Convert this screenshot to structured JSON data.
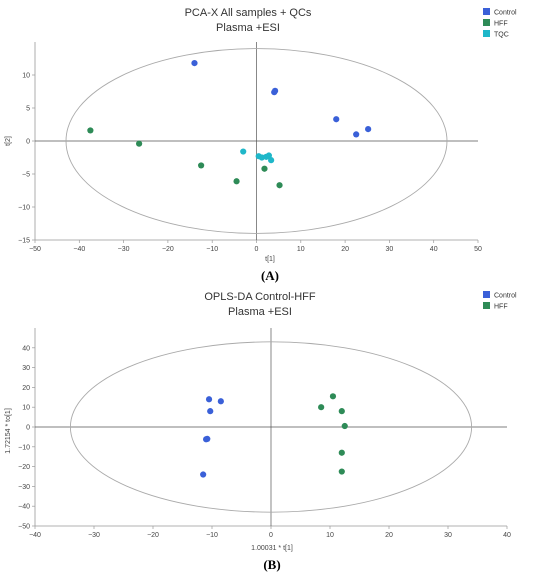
{
  "chart_data": [
    {
      "type": "scatter",
      "title": "PCA-X All samples + QCs",
      "subtitle": "Plasma +ESI",
      "xlabel": "t[1]",
      "ylabel": "t[2]",
      "xlim": [
        -50,
        50
      ],
      "ylim": [
        -15,
        15
      ],
      "xticks": [
        -50,
        -40,
        -30,
        -20,
        -10,
        0,
        10,
        20,
        30,
        40,
        50
      ],
      "yticks": [
        -15,
        -10,
        -5,
        0,
        5,
        10
      ],
      "ellipse": {
        "cx": 0,
        "cy": 0,
        "rx": 43,
        "ry": 14
      },
      "legend_position": "top-right",
      "panel_label": "(A)",
      "series": [
        {
          "name": "Control",
          "color": "#3A60D8",
          "points": [
            [
              -14,
              11.8
            ],
            [
              4,
              7.4
            ],
            [
              4.2,
              7.6
            ],
            [
              18,
              3.3
            ],
            [
              22.5,
              1.0
            ],
            [
              25.2,
              1.8
            ]
          ]
        },
        {
          "name": "HFF",
          "color": "#2E8B57",
          "points": [
            [
              -37.5,
              1.6
            ],
            [
              -26.5,
              -0.4
            ],
            [
              -12.5,
              -3.7
            ],
            [
              -4.5,
              -6.1
            ],
            [
              1.8,
              -4.2
            ],
            [
              5.2,
              -6.7
            ]
          ]
        },
        {
          "name": "TQC",
          "color": "#1FB7C9",
          "points": [
            [
              -3,
              -1.6
            ],
            [
              0.5,
              -2.3
            ],
            [
              1.2,
              -2.5
            ],
            [
              2.2,
              -2.4
            ],
            [
              2.8,
              -2.2
            ],
            [
              3.3,
              -2.9
            ]
          ]
        }
      ]
    },
    {
      "type": "scatter",
      "title": "OPLS-DA Control-HFF",
      "subtitle": "Plasma +ESI",
      "xlabel": "1.00031 * t[1]",
      "ylabel": "1.72154 * to[1]",
      "xlim": [
        -40,
        40
      ],
      "ylim": [
        -50,
        50
      ],
      "xticks": [
        -40,
        -30,
        -20,
        -10,
        0,
        10,
        20,
        30,
        40
      ],
      "yticks": [
        -50,
        -40,
        -30,
        -20,
        -10,
        0,
        10,
        20,
        30,
        40
      ],
      "ellipse": {
        "cx": 0,
        "cy": 0,
        "rx": 34,
        "ry": 43
      },
      "legend_position": "top-right",
      "panel_label": "(B)",
      "series": [
        {
          "name": "Control",
          "color": "#3A60D8",
          "points": [
            [
              -10.5,
              14
            ],
            [
              -8.5,
              13
            ],
            [
              -10.3,
              8
            ],
            [
              -10.8,
              -6
            ],
            [
              -11,
              -6.2
            ],
            [
              -11.5,
              -24
            ]
          ]
        },
        {
          "name": "HFF",
          "color": "#2E8B57",
          "points": [
            [
              10.5,
              15.5
            ],
            [
              8.5,
              10
            ],
            [
              12,
              8
            ],
            [
              12.5,
              0.5
            ],
            [
              12,
              -13
            ],
            [
              12,
              -22.5
            ]
          ]
        }
      ]
    }
  ]
}
